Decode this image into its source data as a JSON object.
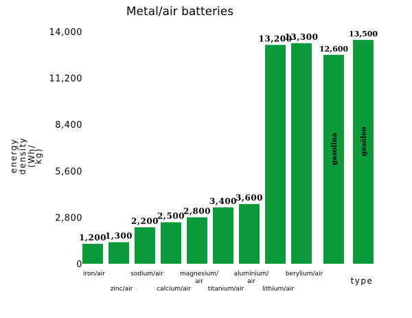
{
  "chart_data": {
    "type": "bar",
    "title": "Metal/air batteries",
    "ylabel": [
      "energy",
      "density",
      "(Wh/",
      "kg)"
    ],
    "xlabel": "type",
    "ylim": [
      0,
      14000
    ],
    "yticks": [
      0,
      2800,
      5600,
      8400,
      11200,
      14000
    ],
    "ytick_labels": [
      "0",
      "2,800",
      "5,600",
      "8,400",
      "11,200",
      "14,000"
    ],
    "grid": false,
    "bar_color": "#0c9a3a",
    "categories": [
      {
        "label": [
          "iron/air"
        ],
        "row": 0
      },
      {
        "label": [
          "zinc/air"
        ],
        "row": 1
      },
      {
        "label": [
          "sodium/air"
        ],
        "row": 0
      },
      {
        "label": [
          "calcium/air"
        ],
        "row": 1
      },
      {
        "label": [
          "magnesium/",
          "air"
        ],
        "row": 0
      },
      {
        "label": [
          "titanium/air"
        ],
        "row": 1
      },
      {
        "label": [
          "aluminium/",
          "air"
        ],
        "row": 0
      },
      {
        "label": [
          "lithium/air"
        ],
        "row": 1
      },
      {
        "label": [
          "berylium/air"
        ],
        "row": 0
      },
      {
        "label": [],
        "row": 0
      },
      {
        "label": [],
        "row": 0
      }
    ],
    "values": [
      1200,
      1300,
      2200,
      2500,
      2800,
      3400,
      3600,
      13200,
      13300,
      12600,
      13500
    ],
    "value_labels": [
      "1,200",
      "1,300",
      "2,200",
      "2,500",
      "2,800",
      "3,400",
      "3,600",
      "13,200",
      "13,300",
      "12,600",
      "13,500"
    ],
    "inbar_labels": [
      "",
      "",
      "",
      "",
      "",
      "",
      "",
      "",
      "",
      "gasolina",
      "gasóleo"
    ]
  }
}
